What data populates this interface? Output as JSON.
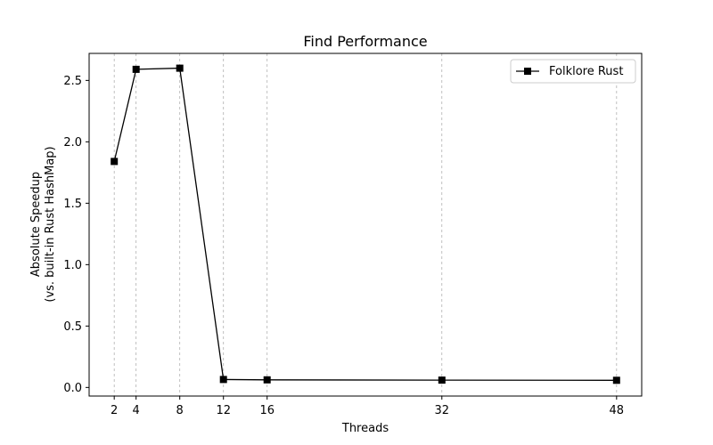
{
  "chart_data": {
    "type": "line",
    "title": "Find Performance",
    "xlabel": "Threads",
    "ylabel": [
      "Absolute Speedup",
      "(vs. built-in Rust HashMap)"
    ],
    "x": [
      2,
      4,
      8,
      12,
      16,
      32,
      48
    ],
    "x_ticks": [
      2,
      4,
      8,
      12,
      16,
      32,
      48
    ],
    "y_ticks": [
      "0.0",
      "0.5",
      "1.0",
      "1.5",
      "2.0",
      "2.5"
    ],
    "xlim": [
      -0.3,
      50.3
    ],
    "ylim": [
      -0.07,
      2.72
    ],
    "grid": "vertical-dashed",
    "legend_position": "top-right",
    "series": [
      {
        "name": "Folklore Rust",
        "values": [
          1.84,
          2.59,
          2.6,
          0.065,
          0.062,
          0.06,
          0.058
        ],
        "color": "#000000",
        "marker": "square"
      }
    ]
  }
}
